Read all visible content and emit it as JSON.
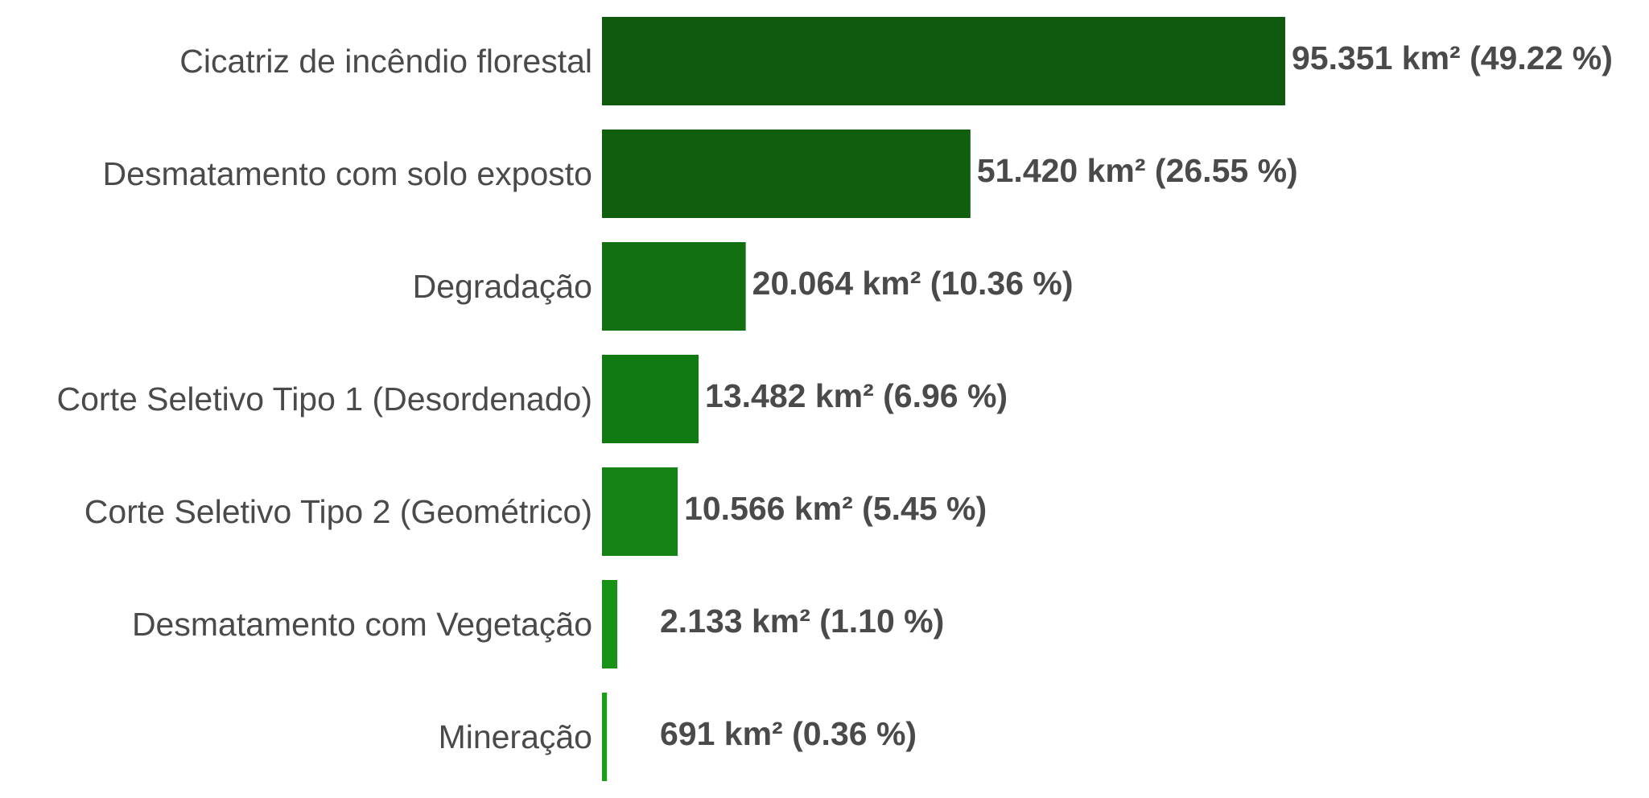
{
  "chart_data": {
    "type": "bar",
    "orientation": "horizontal",
    "title": "",
    "xlabel": "",
    "ylabel": "",
    "grid": false,
    "legend": "none",
    "xlim": [
      0,
      95.351
    ],
    "categories": [
      "Cicatriz de incêndio florestal",
      "Desmatamento com solo exposto",
      "Degradação",
      "Corte Seletivo Tipo 1 (Desordenado)",
      "Corte Seletivo Tipo 2 (Geométrico)",
      "Desmatamento com Vegetação",
      "Mineração"
    ],
    "values": [
      95.351,
      51.42,
      20.064,
      13.482,
      10.566,
      2.133,
      0.691
    ],
    "value_labels": [
      "95.351 km² (49.22 %)",
      "51.420 km² (26.55 %)",
      "20.064 km² (10.36 %)",
      "13.482 km² (6.96 %)",
      "10.566 km² (5.45 %)",
      "2.133 km² (1.10 %)",
      "691 km² (0.36 %)"
    ],
    "colors": [
      "#0f5a0f",
      "#0f5f0f",
      "#126f12",
      "#127a12",
      "#148214",
      "#169216",
      "#18a018"
    ]
  }
}
